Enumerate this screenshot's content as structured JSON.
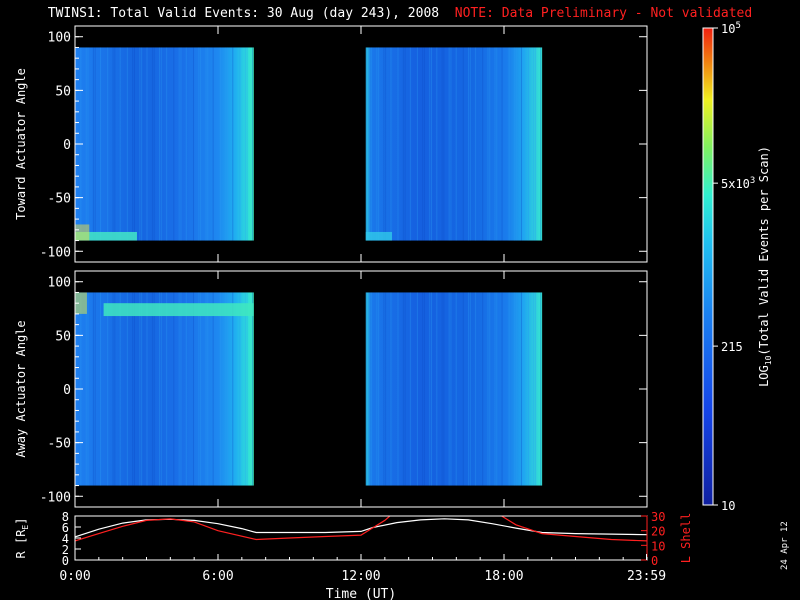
{
  "title": "TWINS1: Total Valid Events: 30 Aug (day 243), 2008",
  "note": "NOTE: Data Preliminary - Not validated",
  "side_stamp": "24 Apr 12",
  "colors": {
    "background": "#000000",
    "axes": "#ffffff",
    "note": "#ff2020",
    "lshell": "#ff2020",
    "radius": "#ffffff"
  },
  "chart_data": [
    {
      "type": "heatmap",
      "ylabel": "Toward Actuator Angle",
      "ylim": [
        -110,
        110
      ],
      "yticks": [
        "100",
        "50",
        "0",
        "-50",
        "-100"
      ],
      "ytick_values": [
        100,
        50,
        0,
        -50,
        -100
      ],
      "xlim": [
        0,
        24
      ],
      "data_angle_range": [
        -90,
        90
      ],
      "data_intervals_hours": [
        [
          0.0,
          7.5
        ],
        [
          12.2,
          19.6
        ]
      ],
      "colormap": "rainbow",
      "low_angle_feature": "bright band near -85 to -90 deg at start of each interval"
    },
    {
      "type": "heatmap",
      "ylabel": "Away Actuator Angle",
      "ylim": [
        -110,
        110
      ],
      "yticks": [
        "100",
        "50",
        "0",
        "-50",
        "-100"
      ],
      "ytick_values": [
        100,
        50,
        0,
        -50,
        -100
      ],
      "xlim": [
        0,
        24
      ],
      "data_angle_range": [
        -90,
        90
      ],
      "data_intervals_hours": [
        [
          0.0,
          7.5
        ],
        [
          12.2,
          19.6
        ]
      ],
      "colormap": "rainbow",
      "high_angle_feature": "bright band near 70 to 80 deg in first interval"
    },
    {
      "type": "line",
      "ylabel": "R [R",
      "ylabel_sub": "E",
      "ylabel_close": "]",
      "y2label": "L Shell",
      "xlabel": "Time (UT)",
      "xticks": [
        "0:00",
        "6:00",
        "12:00",
        "18:00",
        "23:59"
      ],
      "xtick_values": [
        0,
        6,
        12,
        18,
        23.98
      ],
      "ylim": [
        0,
        8
      ],
      "yticks": [
        "8",
        "6",
        "4",
        "2",
        "0"
      ],
      "ytick_values": [
        8,
        6,
        4,
        2,
        0
      ],
      "y2lim": [
        0,
        30
      ],
      "y2ticks": [
        "30",
        "20",
        "10",
        "0"
      ],
      "y2tick_values": [
        30,
        20,
        10,
        0
      ],
      "series": [
        {
          "axis": "left",
          "color": "#ffffff",
          "x": [
            0,
            1,
            2,
            3,
            4,
            5,
            6,
            7,
            7.6,
            9,
            10.5,
            12,
            12.5,
            13.5,
            14.5,
            15.5,
            16.5,
            17.5,
            18.5,
            19.6,
            21,
            22.5,
            24
          ],
          "values": [
            4.2,
            5.6,
            6.7,
            7.3,
            7.4,
            7.2,
            6.6,
            5.7,
            5.0,
            5.0,
            5.0,
            5.2,
            5.9,
            6.8,
            7.3,
            7.5,
            7.3,
            6.6,
            5.8,
            5.0,
            4.8,
            4.7,
            4.6
          ]
        },
        {
          "axis": "right",
          "color": "#ff2020",
          "x": [
            0,
            1,
            2,
            3,
            4,
            5,
            6,
            7.6,
            9,
            10.5,
            12,
            12.4,
            13.0,
            13.5,
            17.5,
            18.5,
            19.6,
            21,
            22.5,
            24
          ],
          "values": [
            13,
            18,
            23,
            27,
            28,
            26,
            20,
            14,
            15,
            16,
            17,
            21,
            27,
            34,
            34,
            24,
            18,
            16,
            14,
            13
          ]
        }
      ]
    },
    {
      "type": "colorbar",
      "label_prefix": "LOG",
      "label_sub": "10",
      "label_suffix": "(Total Valid Events per Scan)",
      "tick_labels": [
        {
          "base": "10",
          "exp": "",
          "value": 10
        },
        {
          "base": "215",
          "exp": "",
          "value": 215
        },
        {
          "base": "5x10",
          "exp": "3",
          "value": 5000
        },
        {
          "base": "10",
          "exp": "5",
          "value": 100000
        }
      ],
      "range": [
        10,
        100000
      ],
      "scale": "log"
    }
  ]
}
